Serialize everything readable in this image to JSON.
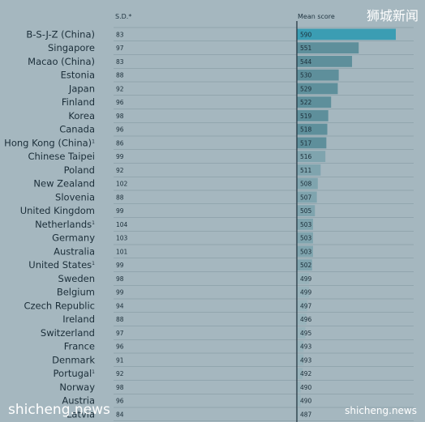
{
  "header": {
    "sd_label": "S.D.*",
    "mean_label": "Mean score"
  },
  "watermarks": {
    "top_right": "狮城新闻",
    "bottom_left": "shicheng.news",
    "bottom_right": "shicheng.news"
  },
  "colors": {
    "first_bar": "#3b9db3",
    "top_bars": "#5e8f9b",
    "mid_bars": "#7fa4ae",
    "low_bars": "#98b3bb",
    "axis_line": "#1b2e39"
  },
  "chart_data": {
    "type": "bar",
    "orientation": "horizontal",
    "categories": [
      "B-S-J-Z (China)",
      "Singapore",
      "Macao (China)",
      "Estonia",
      "Japan",
      "Finland",
      "Korea",
      "Canada",
      "Hong Kong (China)",
      "Chinese Taipei",
      "Poland",
      "New Zealand",
      "Slovenia",
      "United Kingdom",
      "Netherlands",
      "Germany",
      "Australia",
      "United States",
      "Sweden",
      "Belgium",
      "Czech Republic",
      "Ireland",
      "Switzerland",
      "France",
      "Denmark",
      "Portugal",
      "Norway",
      "Austria",
      "Latvia"
    ],
    "footnote_marks": [
      "",
      "",
      "",
      "",
      "",
      "",
      "",
      "",
      "1",
      "",
      "",
      "",
      "",
      "",
      "1",
      "",
      "",
      "1",
      "",
      "",
      "",
      "",
      "",
      "",
      "",
      "1",
      "",
      "",
      ""
    ],
    "sd": [
      83,
      97,
      83,
      88,
      92,
      96,
      98,
      96,
      86,
      99,
      92,
      102,
      88,
      99,
      104,
      103,
      101,
      99,
      98,
      99,
      94,
      88,
      97,
      96,
      91,
      92,
      98,
      96,
      84
    ],
    "values": [
      590,
      551,
      544,
      530,
      529,
      522,
      519,
      518,
      517,
      516,
      511,
      508,
      507,
      505,
      503,
      503,
      503,
      502,
      499,
      499,
      497,
      496,
      495,
      493,
      493,
      492,
      490,
      490,
      487
    ],
    "xlim": [
      486,
      600
    ]
  }
}
